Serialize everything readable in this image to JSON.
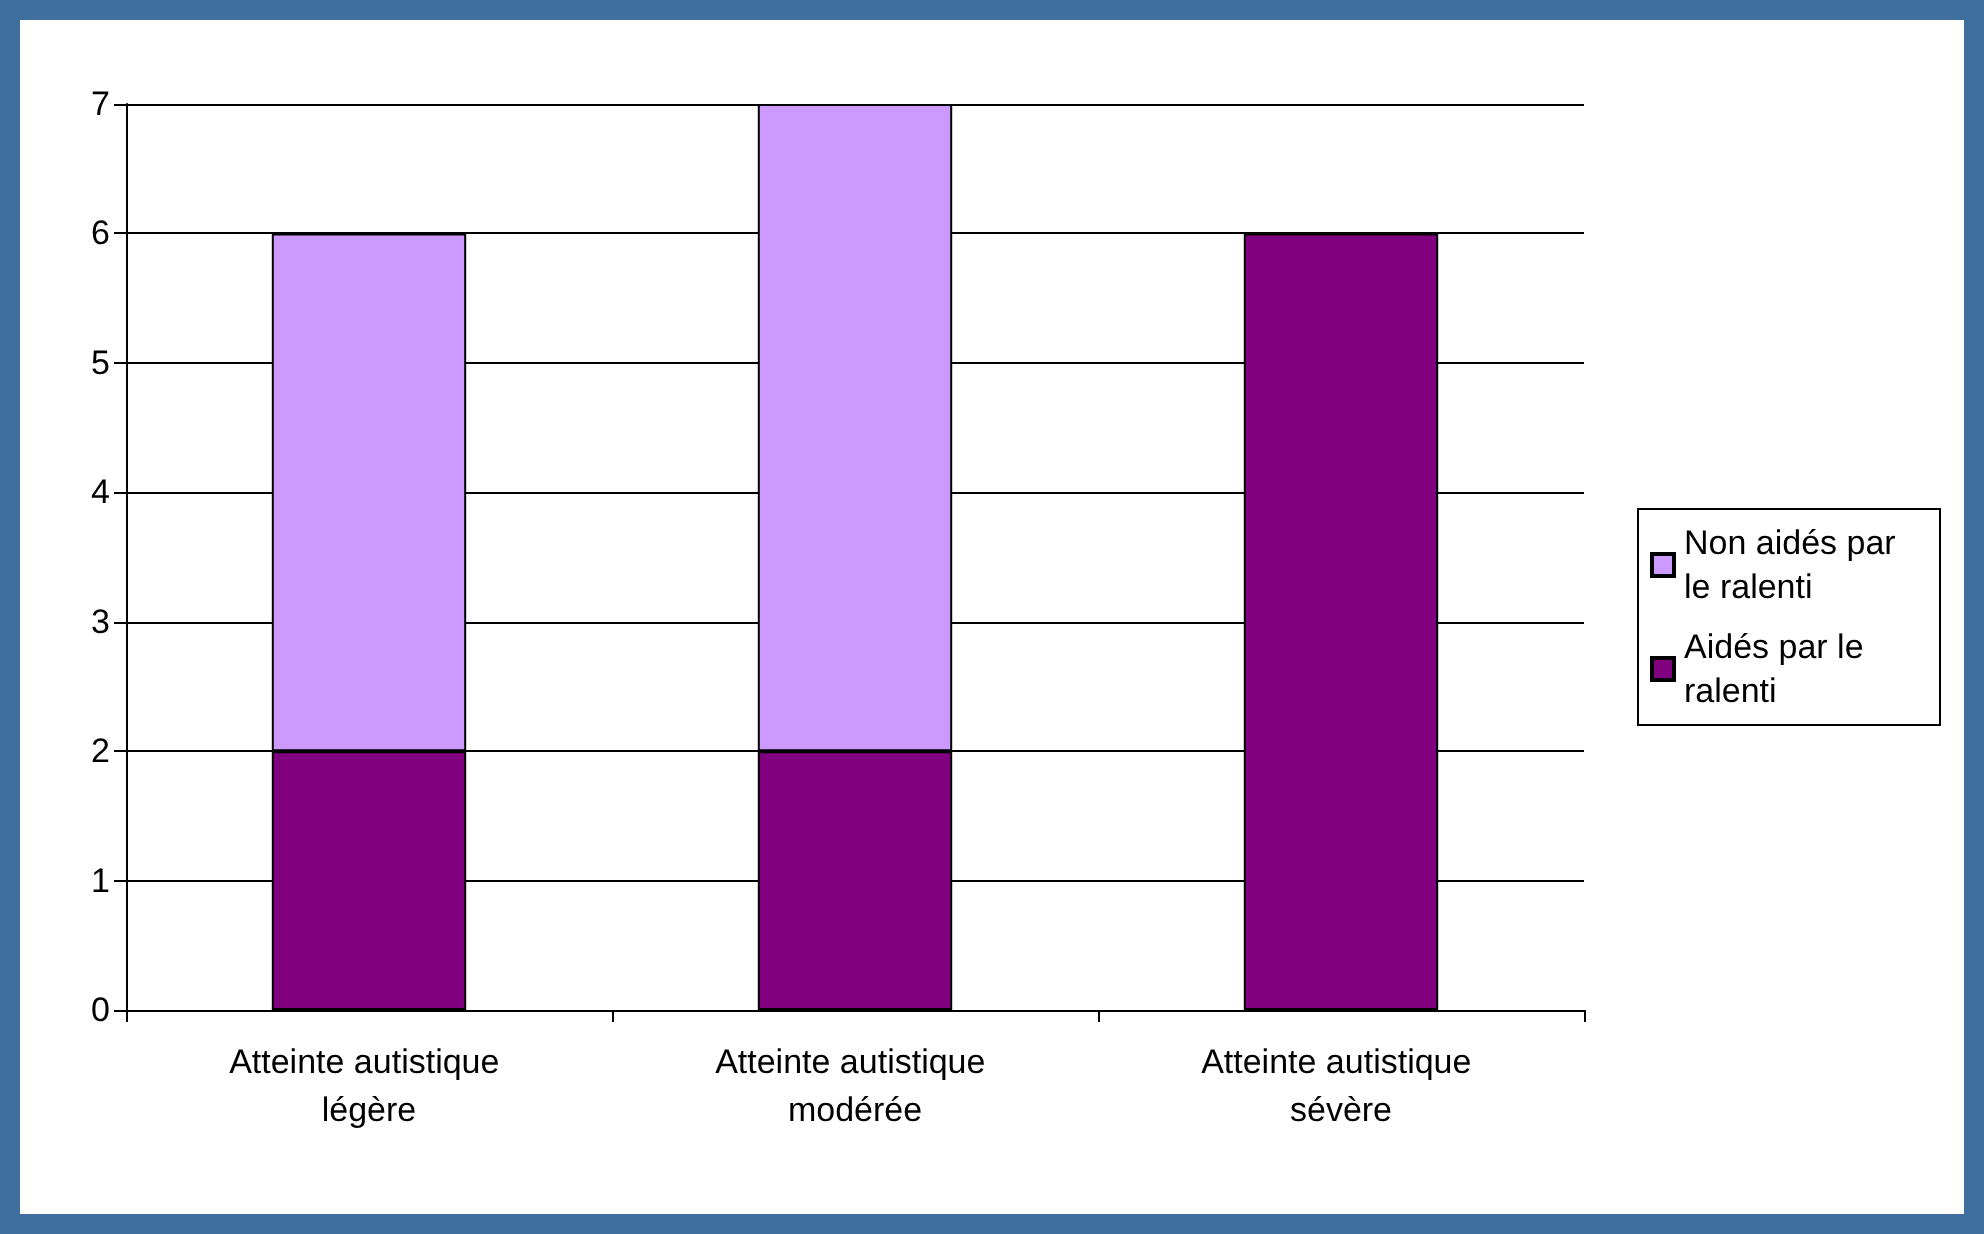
{
  "chart_data": {
    "type": "bar",
    "stacked": true,
    "categories": [
      "Atteinte autistique légère",
      "Atteinte autistique modérée",
      "Atteinte autistique sévère"
    ],
    "series": [
      {
        "name": "Aidés par le ralenti",
        "color": "#800080",
        "values": [
          2,
          2,
          6
        ]
      },
      {
        "name": "Non aidés par le ralenti",
        "color": "#cc99ff",
        "values": [
          4,
          5,
          0
        ]
      }
    ],
    "ylim": [
      0,
      7
    ],
    "yticks": [
      0,
      1,
      2,
      3,
      4,
      5,
      6,
      7
    ],
    "grid": "y",
    "legend": "right"
  }
}
